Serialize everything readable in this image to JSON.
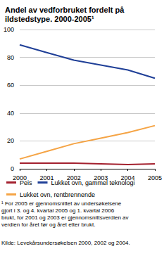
{
  "chart_data": {
    "type": "line",
    "title": "Andel av vedforbruket fordelt på ildstedstype. 2000-2005¹",
    "x": [
      2000,
      2001,
      2002,
      2003,
      2004,
      2005
    ],
    "series": [
      {
        "name": "Peis",
        "color": "#a3202e",
        "values": [
          4,
          4,
          4,
          3.5,
          3,
          3.5
        ]
      },
      {
        "name": "Lukket ovn, gammel teknologi",
        "color": "#1f3f97",
        "values": [
          89,
          83.5,
          78,
          74.5,
          71,
          65
        ]
      },
      {
        "name": "Lukket ovn, rentbrennende",
        "color": "#f5a445",
        "values": [
          7,
          12.5,
          18,
          22,
          26,
          31
        ]
      }
    ],
    "xlim": [
      2000,
      2005
    ],
    "xticks": [
      2000,
      2001,
      2002,
      2003,
      2004,
      2005
    ],
    "ylim": [
      0,
      100
    ],
    "yticks": [
      0,
      20,
      40,
      60,
      80,
      100
    ],
    "grid": true,
    "legend": "bottom",
    "footnote": "¹ For 2005 er gjennomsnittet av undersøkelsene gjort i 3. og 4. kvartal 2005 og 1. kvartal 2006 brukt, for 2001 og 2003 er gjennomsnittsverdien av verdien for året før og året etter brukt.",
    "source": "Kilde: Levekårsundersøkelsen 2000, 2002 og 2004."
  }
}
